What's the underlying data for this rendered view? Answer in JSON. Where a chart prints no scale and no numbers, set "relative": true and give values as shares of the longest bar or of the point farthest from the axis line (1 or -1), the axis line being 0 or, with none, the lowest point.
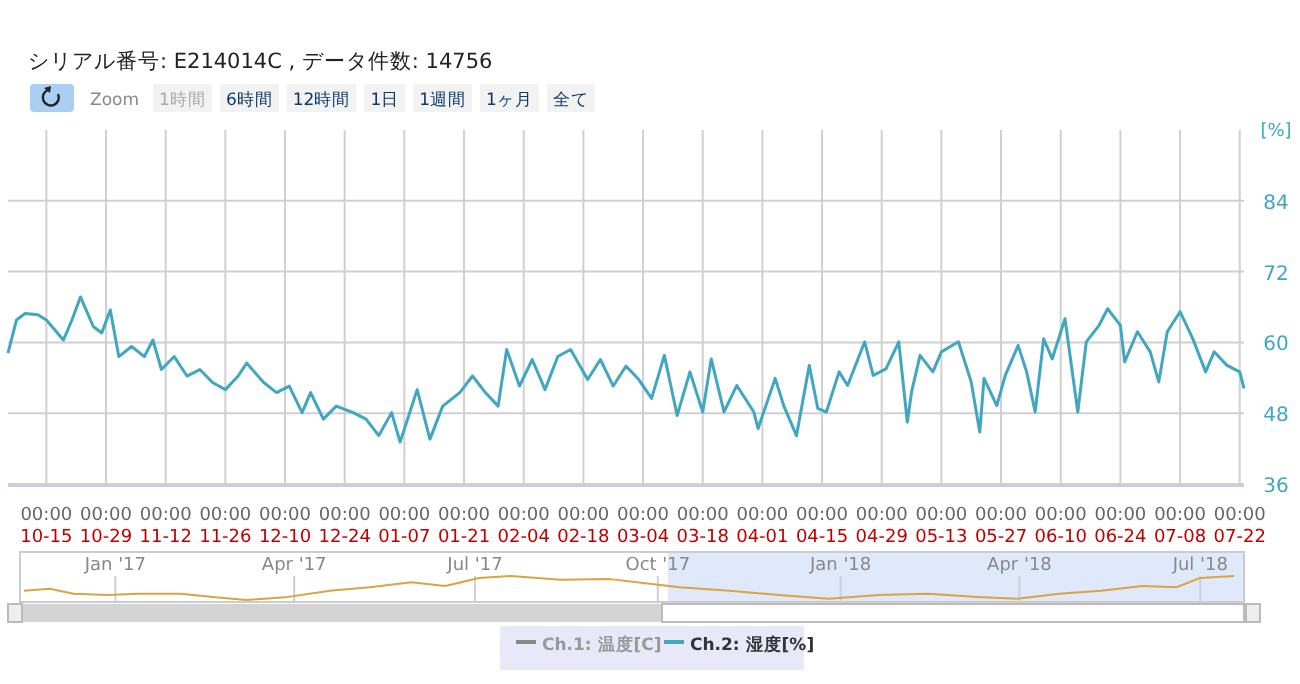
{
  "chart_data": [
    {
      "type": "line",
      "subtitle": "シリアル番号: E214014C , データ件数: 14756",
      "ylabel": "[%]",
      "annotations": [
        "Zoom",
        "1時間",
        "6時間",
        "12時間",
        "1日",
        "1週間",
        "1ヶ月",
        "全て"
      ],
      "xlim": [
        "2017-10-06",
        "2018-07-23"
      ],
      "xticks": [
        {
          "value": "2017-10-15",
          "label": "00:00\n10-15"
        },
        {
          "value": "2017-10-29",
          "label": "00:00\n10-29"
        },
        {
          "value": "2017-11-12",
          "label": "00:00\n11-12"
        },
        {
          "value": "2017-11-26",
          "label": "00:00\n11-26"
        },
        {
          "value": "2017-12-10",
          "label": "00:00\n12-10"
        },
        {
          "value": "2017-12-24",
          "label": "00:00\n12-24"
        },
        {
          "value": "2018-01-07",
          "label": "00:00\n01-07"
        },
        {
          "value": "2018-01-21",
          "label": "00:00\n01-21"
        },
        {
          "value": "2018-02-04",
          "label": "00:00\n02-04"
        },
        {
          "value": "2018-02-18",
          "label": "00:00\n02-18"
        },
        {
          "value": "2018-03-04",
          "label": "00:00\n03-04"
        },
        {
          "value": "2018-03-18",
          "label": "00:00\n03-18"
        },
        {
          "value": "2018-04-01",
          "label": "00:00\n04-01"
        },
        {
          "value": "2018-04-15",
          "label": "00:00\n04-15"
        },
        {
          "value": "2018-04-29",
          "label": "00:00\n04-29"
        },
        {
          "value": "2018-05-13",
          "label": "00:00\n05-13"
        },
        {
          "value": "2018-05-27",
          "label": "00:00\n05-27"
        },
        {
          "value": "2018-06-10",
          "label": "00:00\n06-10"
        },
        {
          "value": "2018-06-24",
          "label": "00:00\n06-24"
        },
        {
          "value": "2018-07-08",
          "label": "00:00\n07-08"
        },
        {
          "value": "2018-07-22",
          "label": "00:00\n07-22"
        }
      ],
      "ylim": [
        36,
        96
      ],
      "yticks": [
        36,
        48,
        60,
        72,
        84
      ],
      "grid": true,
      "legend": "bottom",
      "series": [
        {
          "name": "Ch.1: 温度[C]",
          "color": "#888888"
        },
        {
          "name": "Ch.2: 湿度[%]",
          "color": "#41a7c1",
          "x": [
            "2017-10-06",
            "2017-10-08",
            "2017-10-10",
            "2017-10-13",
            "2017-10-15",
            "2017-10-19",
            "2017-10-21",
            "2017-10-23",
            "2017-10-26",
            "2017-10-28",
            "2017-10-30",
            "2017-11-01",
            "2017-11-04",
            "2017-11-07",
            "2017-11-09",
            "2017-11-11",
            "2017-11-14",
            "2017-11-17",
            "2017-11-20",
            "2017-11-23",
            "2017-11-26",
            "2017-11-29",
            "2017-12-01",
            "2017-12-05",
            "2017-12-08",
            "2017-12-11",
            "2017-12-14",
            "2017-12-16",
            "2017-12-19",
            "2017-12-22",
            "2017-12-26",
            "2017-12-29",
            "2018-01-01",
            "2018-01-04",
            "2018-01-06",
            "2018-01-10",
            "2018-01-13",
            "2018-01-16",
            "2018-01-20",
            "2018-01-23",
            "2018-01-26",
            "2018-01-29",
            "2018-01-31",
            "2018-02-03",
            "2018-02-06",
            "2018-02-09",
            "2018-02-12",
            "2018-02-15",
            "2018-02-19",
            "2018-02-22",
            "2018-02-25",
            "2018-02-28",
            "2018-03-03",
            "2018-03-06",
            "2018-03-09",
            "2018-03-12",
            "2018-03-15",
            "2018-03-18",
            "2018-03-20",
            "2018-03-23",
            "2018-03-26",
            "2018-03-30",
            "2018-03-31",
            "2018-04-04",
            "2018-04-06",
            "2018-04-09",
            "2018-04-12",
            "2018-04-14",
            "2018-04-16",
            "2018-04-19",
            "2018-04-21",
            "2018-04-25",
            "2018-04-27",
            "2018-04-30",
            "2018-05-03",
            "2018-05-05",
            "2018-05-06",
            "2018-05-08",
            "2018-05-11",
            "2018-05-13",
            "2018-05-17",
            "2018-05-20",
            "2018-05-22",
            "2018-05-23",
            "2018-05-26",
            "2018-05-28",
            "2018-05-31",
            "2018-06-02",
            "2018-06-04",
            "2018-06-06",
            "2018-06-08",
            "2018-06-11",
            "2018-06-14",
            "2018-06-16",
            "2018-06-19",
            "2018-06-21",
            "2018-06-24",
            "2018-06-25",
            "2018-06-28",
            "2018-07-01",
            "2018-07-03",
            "2018-07-05",
            "2018-07-08",
            "2018-07-11",
            "2018-07-14",
            "2018-07-16",
            "2018-07-19",
            "2018-07-22",
            "2018-07-23"
          ],
          "values": [
            58.2,
            63.8,
            64.9,
            64.7,
            63.8,
            60.4,
            63.8,
            67.7,
            62.7,
            61.6,
            65.5,
            57.6,
            59.3,
            57.6,
            60.4,
            55.4,
            57.6,
            54.3,
            55.4,
            53.2,
            52.0,
            54.3,
            56.5,
            53.2,
            51.5,
            52.6,
            48.1,
            51.5,
            47.0,
            49.2,
            48.1,
            47.0,
            44.2,
            48.1,
            43.1,
            52.0,
            43.6,
            49.2,
            51.5,
            54.3,
            51.5,
            49.2,
            58.8,
            52.6,
            57.1,
            52.0,
            57.6,
            58.8,
            53.7,
            57.1,
            52.6,
            56.0,
            53.7,
            50.5,
            57.8,
            47.6,
            55.0,
            48.2,
            57.2,
            48.2,
            52.7,
            48.2,
            45.4,
            53.9,
            49.3,
            44.2,
            56.1,
            48.8,
            48.2,
            55.0,
            52.7,
            60.1,
            54.4,
            55.5,
            60.1,
            46.5,
            51.6,
            57.8,
            55.0,
            58.4,
            60.1,
            53.3,
            44.8,
            53.9,
            49.3,
            54.4,
            59.5,
            55.0,
            48.2,
            60.6,
            57.2,
            64.0,
            48.2,
            60.1,
            62.9,
            65.7,
            62.9,
            56.7,
            61.8,
            58.4,
            53.3,
            61.8,
            65.2,
            60.6,
            55.0,
            58.4,
            56.1,
            55.0,
            52.2
          ]
        }
      ]
    },
    {
      "type": "line",
      "relative": true,
      "grid": "x",
      "xlim": [
        "2016-11-14",
        "2018-07-23"
      ],
      "xticks": [
        {
          "value": "2017-01-01",
          "label": "Jan '17"
        },
        {
          "value": "2017-04-01",
          "label": "Apr '17"
        },
        {
          "value": "2017-07-01",
          "label": "Jul '17"
        },
        {
          "value": "2017-10-01",
          "label": "Oct '17"
        },
        {
          "value": "2018-01-01",
          "label": "Jan '18"
        },
        {
          "value": "2018-04-01",
          "label": "Apr '18"
        },
        {
          "value": "2018-07-01",
          "label": "Jul '18"
        }
      ],
      "bands": [
        {
          "axis": "x",
          "from": "2017-10-06",
          "to": "2018-07-23",
          "color": "#d8e2fb"
        }
      ],
      "series": [
        {
          "color": "#d9a441",
          "x": [
            "2016-11-16",
            "2016-11-29",
            "2016-12-11",
            "2016-12-28",
            "2017-01-13",
            "2017-02-03",
            "2017-02-19",
            "2017-03-08",
            "2017-03-29",
            "2017-04-19",
            "2017-05-09",
            "2017-05-30",
            "2017-06-16",
            "2017-07-03",
            "2017-07-19",
            "2017-08-13",
            "2017-09-07",
            "2017-09-29",
            "2017-10-12",
            "2017-11-06",
            "2017-12-01",
            "2017-12-26",
            "2018-01-20",
            "2018-02-14",
            "2018-03-11",
            "2018-03-31",
            "2018-04-21",
            "2018-05-12",
            "2018-06-02",
            "2018-06-19",
            "2018-07-01",
            "2018-07-18"
          ],
          "values": [
            0.39,
            0.47,
            0.26,
            0.21,
            0.26,
            0.26,
            0.13,
            0,
            0.13,
            0.39,
            0.53,
            0.74,
            0.58,
            0.92,
            1,
            0.84,
            0.87,
            0.66,
            0.53,
            0.39,
            0.21,
            0.05,
            0.21,
            0.26,
            0.13,
            0.05,
            0.26,
            0.39,
            0.58,
            0.53,
            0.92,
            1
          ]
        }
      ]
    }
  ]
}
